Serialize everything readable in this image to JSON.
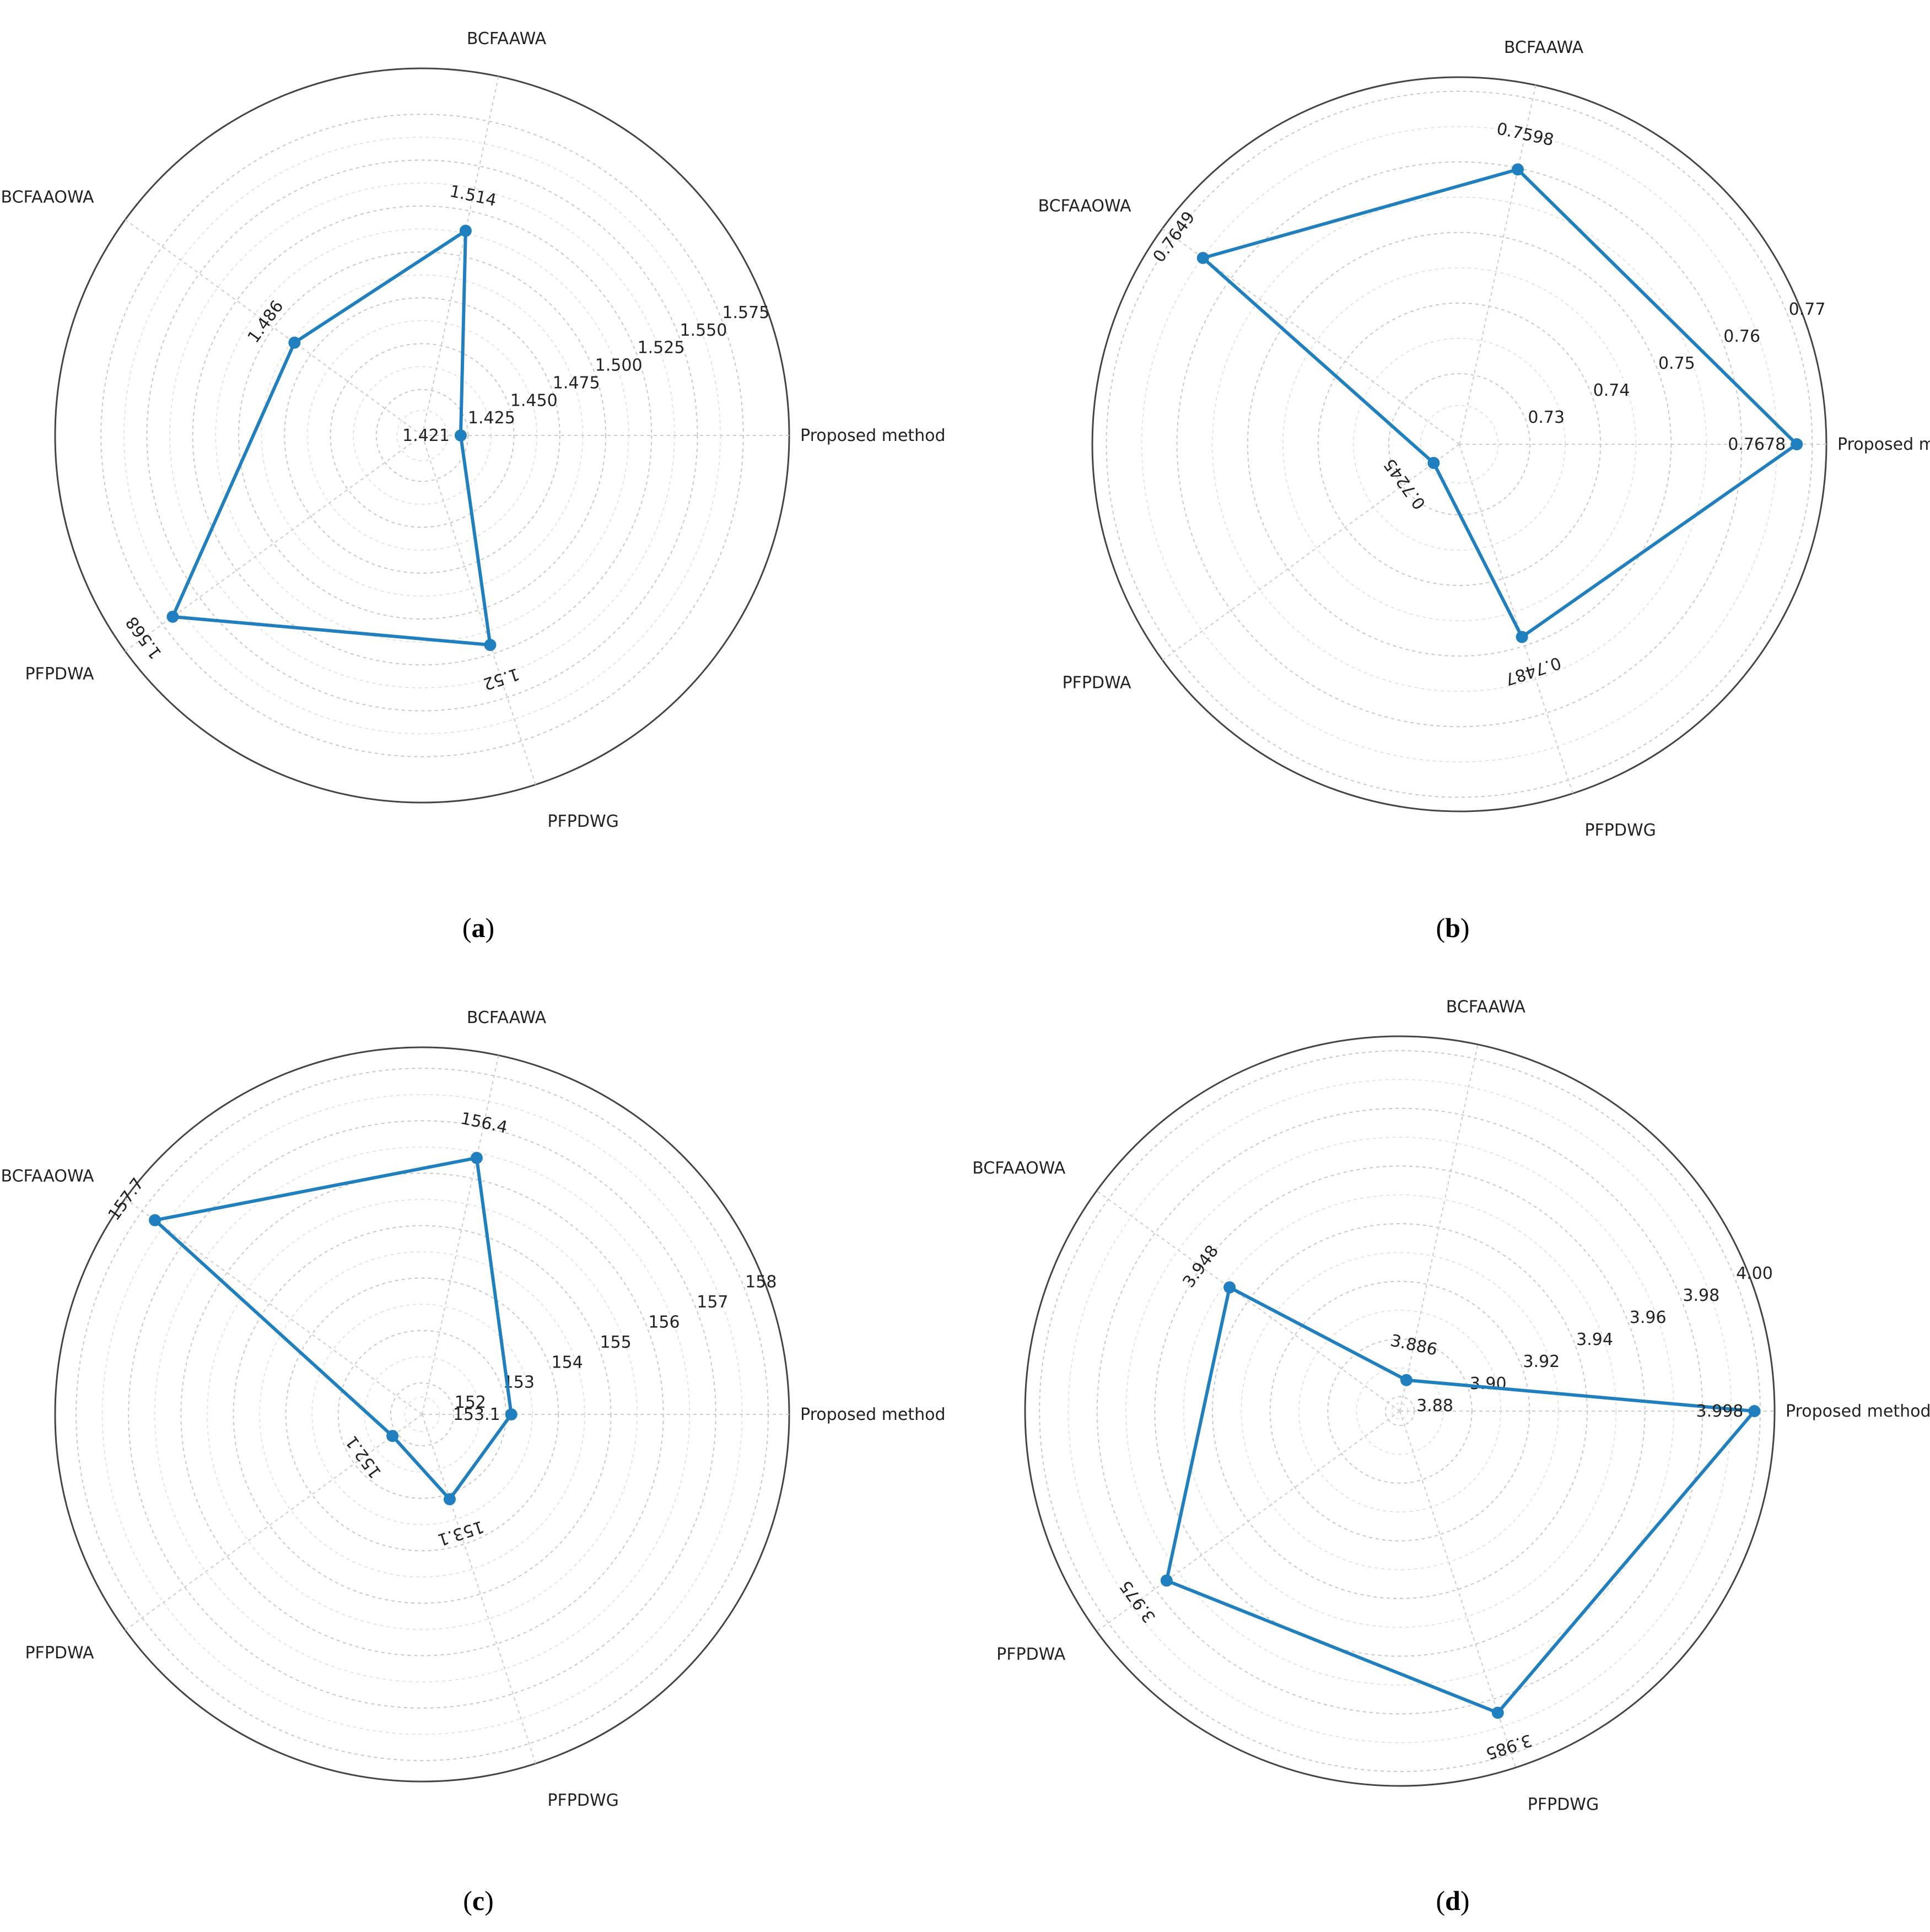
{
  "chart_data": [
    {
      "type": "radar",
      "panel": "a",
      "categories": [
        "Proposed method",
        "BCFAAWA",
        "BCFAAOWA",
        "PFPDWA",
        "PFPDWG"
      ],
      "values": [
        1.421,
        1.514,
        1.486,
        1.568,
        1.52
      ],
      "value_labels": [
        "1.421",
        "1.514",
        "1.486",
        "1.568",
        "1.52"
      ],
      "rlim": [
        1.4,
        1.6
      ],
      "rticks": [
        "1.425",
        "1.450",
        "1.475",
        "1.500",
        "1.525",
        "1.550",
        "1.575"
      ],
      "grid": true,
      "color": "#1f7fbf"
    },
    {
      "type": "radar",
      "panel": "b",
      "categories": [
        "Proposed method",
        "BCFAAWA",
        "BCFAAOWA",
        "PFPDWA",
        "PFPDWG"
      ],
      "values": [
        0.7678,
        0.7598,
        0.7649,
        0.7245,
        0.7487
      ],
      "value_labels": [
        "0.7678",
        "0.7598",
        "0.7649",
        "0.7245",
        "0.7487"
      ],
      "rlim": [
        0.72,
        0.772
      ],
      "rticks": [
        "0.73",
        "0.74",
        "0.75",
        "0.76",
        "0.77"
      ],
      "grid": true,
      "color": "#1f7fbf"
    },
    {
      "type": "radar",
      "panel": "c",
      "categories": [
        "Proposed method",
        "BCFAAWA",
        "BCFAAOWA",
        "PFPDWA",
        "PFPDWG"
      ],
      "values": [
        153.1,
        156.4,
        157.7,
        152.1,
        153.1
      ],
      "value_labels": [
        "153.1",
        "156.4",
        "157.7",
        "152.1",
        "153.1"
      ],
      "rlim": [
        151.4,
        158.4
      ],
      "rticks": [
        "152",
        "153",
        "154",
        "155",
        "156",
        "157",
        "158"
      ],
      "grid": true,
      "color": "#1f7fbf"
    },
    {
      "type": "radar",
      "panel": "d",
      "categories": [
        "Proposed method",
        "BCFAAWA",
        "BCFAAOWA",
        "PFPDWA",
        "PFPDWG"
      ],
      "values": [
        3.998,
        3.886,
        3.948,
        3.975,
        3.985
      ],
      "value_labels": [
        "3.998",
        "3.886",
        "3.948",
        "3.975",
        "3.985"
      ],
      "rlim": [
        3.875,
        4.005
      ],
      "rticks": [
        "3.88",
        "3.90",
        "3.92",
        "3.94",
        "3.96",
        "3.98",
        "4.00"
      ],
      "grid": true,
      "color": "#1f7fbf"
    }
  ]
}
